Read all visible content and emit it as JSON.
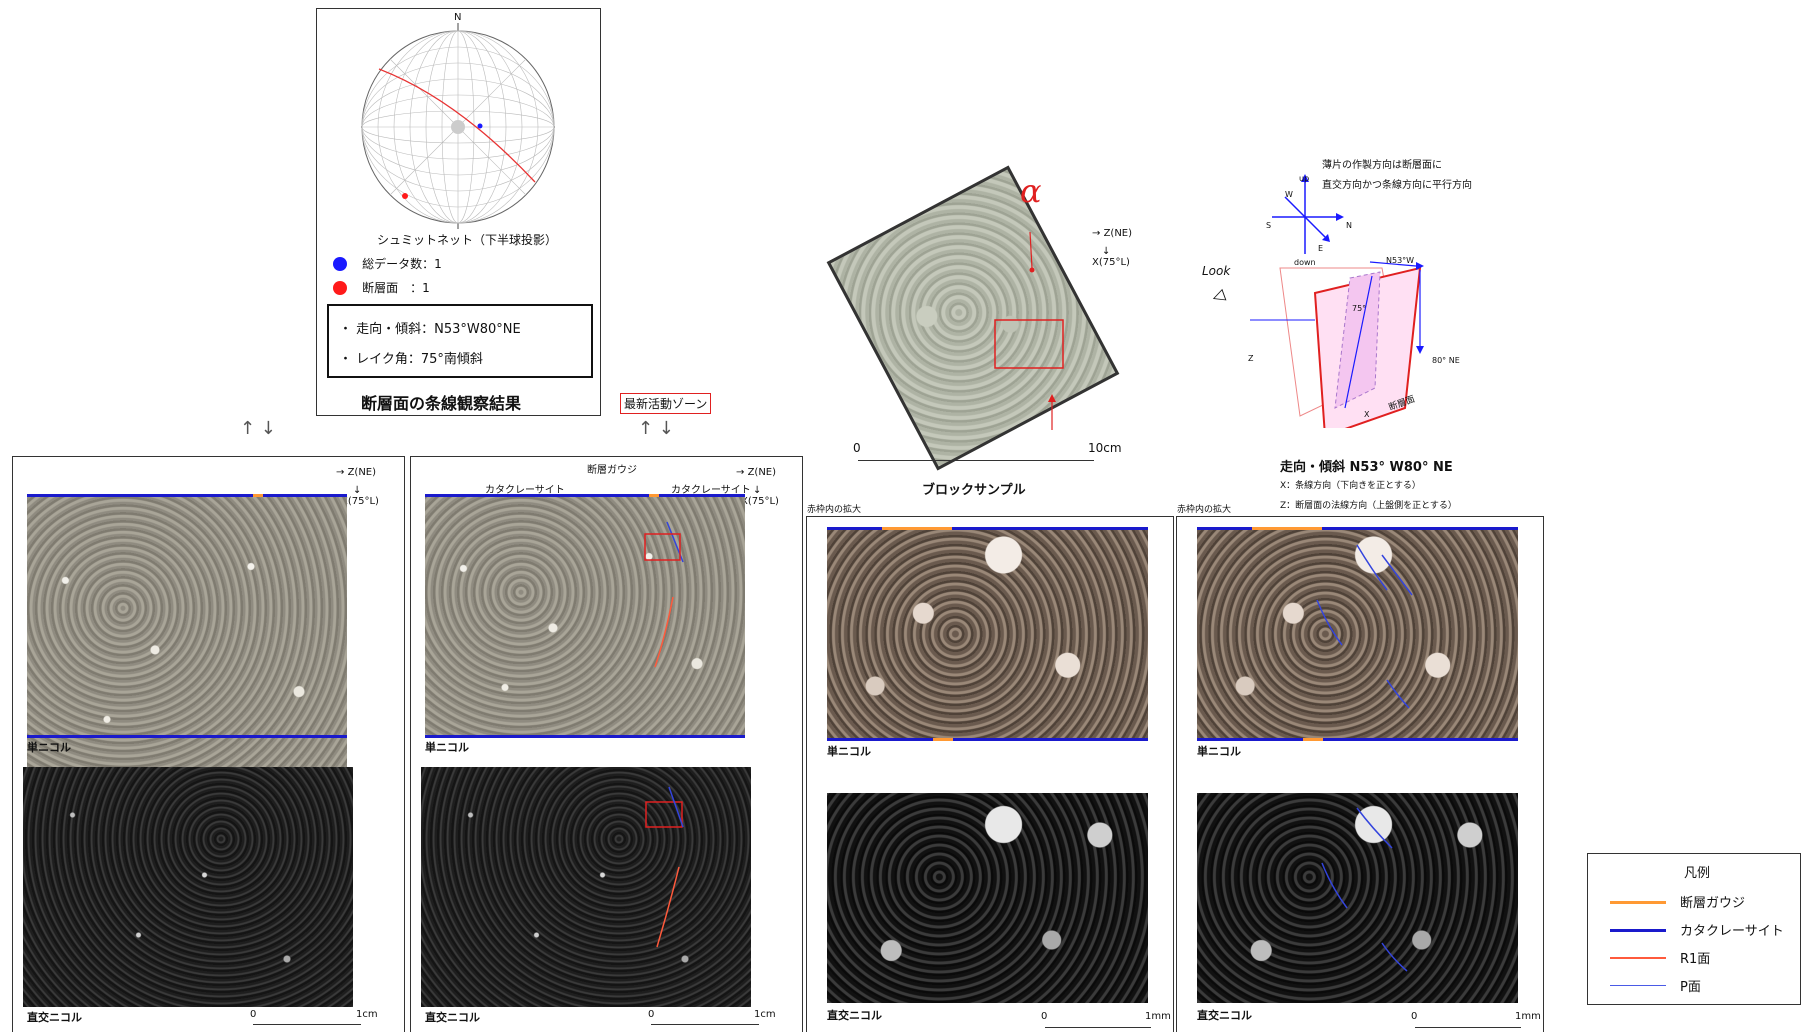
{
  "stereonet": {
    "north": "N",
    "caption": "シュミットネット（下半球投影）",
    "legend": [
      {
        "label": "総データ数：1",
        "color": "#1a1aff"
      },
      {
        "label": "断層面　：1",
        "color": "#ff1a1a"
      }
    ],
    "info": [
      "・ 走向・傾斜：N53°W80°NE",
      "・ レイク角：75°南傾斜"
    ],
    "title": "断層面の条線観察結果"
  },
  "latest_zone_label": "最新活動ゾーン",
  "panel1": {
    "z_label": "Z(NE)",
    "x_label": "X(75°L)",
    "ppl_label": "単ニコル",
    "xpl_label": "直交ニコル",
    "scale_0": "0",
    "scale_end": "1cm"
  },
  "panel2": {
    "gouge_label": "断層ガウジ",
    "cataclasite_left": "カタクレーサイト",
    "cataclasite_right": "カタクレーサイト",
    "z_label": "Z(NE)",
    "x_label": "X(75°L)",
    "ppl_label": "単ニコル",
    "xpl_label": "直交ニコル",
    "scale_0": "0",
    "scale_end": "1cm"
  },
  "block": {
    "alpha": "α",
    "z_label": "Z(NE)",
    "x_label": "X(75°L)",
    "scale_0": "0",
    "scale_end": "10cm",
    "caption": "ブロックサンプル"
  },
  "orientation": {
    "note_line1": "薄片の作製方向は断層面に",
    "note_line2": "直交方向かつ条線方向に平行方向",
    "compass": {
      "up": "up",
      "down": "down",
      "w": "W",
      "e": "E",
      "s": "S",
      "n": "N"
    },
    "look": "Look",
    "strike": "N53°W",
    "dip": "80° NE",
    "rake": "75°",
    "z": "Z",
    "x": "X",
    "plane": "断層面",
    "title": "走向・傾斜 N53° W80° NE",
    "x_desc": "X：条線方向（下向きを正とする）",
    "z_desc": "Z：断層面の法線方向（上盤側を正とする）"
  },
  "zoom1": {
    "header": "赤枠内の拡大",
    "ppl_label": "単ニコル",
    "xpl_label": "直交ニコル",
    "scale_0": "0",
    "scale_end": "1mm"
  },
  "zoom2": {
    "header": "赤枠内の拡大",
    "ppl_label": "単ニコル",
    "xpl_label": "直交ニコル",
    "scale_0": "0",
    "scale_end": "1mm"
  },
  "legend": {
    "title": "凡例",
    "items": [
      {
        "label": "断層ガウジ",
        "color": "#ff9933"
      },
      {
        "label": "カタクレーサイト",
        "color": "#1a1acc"
      },
      {
        "label": "R1面",
        "color": "#ff5a3c"
      },
      {
        "label": "P面",
        "color": "#4a5ae6"
      }
    ]
  }
}
